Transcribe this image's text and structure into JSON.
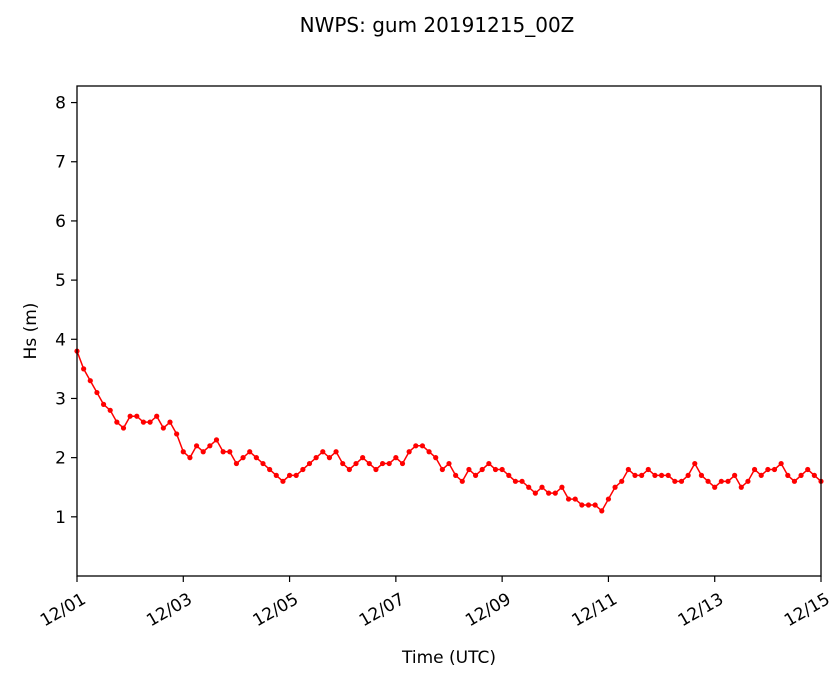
{
  "chart_data": {
    "type": "line",
    "title": "NWPS: gum 20191215_00Z",
    "xlabel": "Time (UTC)",
    "ylabel": "Hs (m)",
    "xlim_days": [
      0,
      14
    ],
    "ylim": [
      0,
      8.28
    ],
    "yticks": [
      1,
      2,
      3,
      4,
      5,
      6,
      7,
      8
    ],
    "xticks": [
      {
        "day": 0,
        "label": "12/01"
      },
      {
        "day": 2,
        "label": "12/03"
      },
      {
        "day": 4,
        "label": "12/05"
      },
      {
        "day": 6,
        "label": "12/07"
      },
      {
        "day": 8,
        "label": "12/09"
      },
      {
        "day": 10,
        "label": "12/11"
      },
      {
        "day": 12,
        "label": "12/13"
      },
      {
        "day": 14,
        "label": "12/15"
      }
    ],
    "grid": false,
    "series": [
      {
        "name": "Hs",
        "color": "#ff0000",
        "marker": "circle",
        "x_start_day": 0,
        "x_step_days": 0.125,
        "values": [
          3.8,
          3.5,
          3.3,
          3.1,
          2.9,
          2.8,
          2.6,
          2.5,
          2.7,
          2.7,
          2.6,
          2.6,
          2.7,
          2.5,
          2.6,
          2.4,
          2.1,
          2.0,
          2.2,
          2.1,
          2.2,
          2.3,
          2.1,
          2.1,
          1.9,
          2.0,
          2.1,
          2.0,
          1.9,
          1.8,
          1.7,
          1.6,
          1.7,
          1.7,
          1.8,
          1.9,
          2.0,
          2.1,
          2.0,
          2.1,
          1.9,
          1.8,
          1.9,
          2.0,
          1.9,
          1.8,
          1.9,
          1.9,
          2.0,
          1.9,
          2.1,
          2.2,
          2.2,
          2.1,
          2.0,
          1.8,
          1.9,
          1.7,
          1.6,
          1.8,
          1.7,
          1.8,
          1.9,
          1.8,
          1.8,
          1.7,
          1.6,
          1.6,
          1.5,
          1.4,
          1.5,
          1.4,
          1.4,
          1.5,
          1.3,
          1.3,
          1.2,
          1.2,
          1.2,
          1.1,
          1.3,
          1.5,
          1.6,
          1.8,
          1.7,
          1.7,
          1.8,
          1.7,
          1.7,
          1.7,
          1.6,
          1.6,
          1.7,
          1.9,
          1.7,
          1.6,
          1.5,
          1.6,
          1.6,
          1.7,
          1.5,
          1.6,
          1.8,
          1.7,
          1.8,
          1.8,
          1.9,
          1.7,
          1.6,
          1.7,
          1.8,
          1.7,
          1.6
        ]
      }
    ]
  }
}
